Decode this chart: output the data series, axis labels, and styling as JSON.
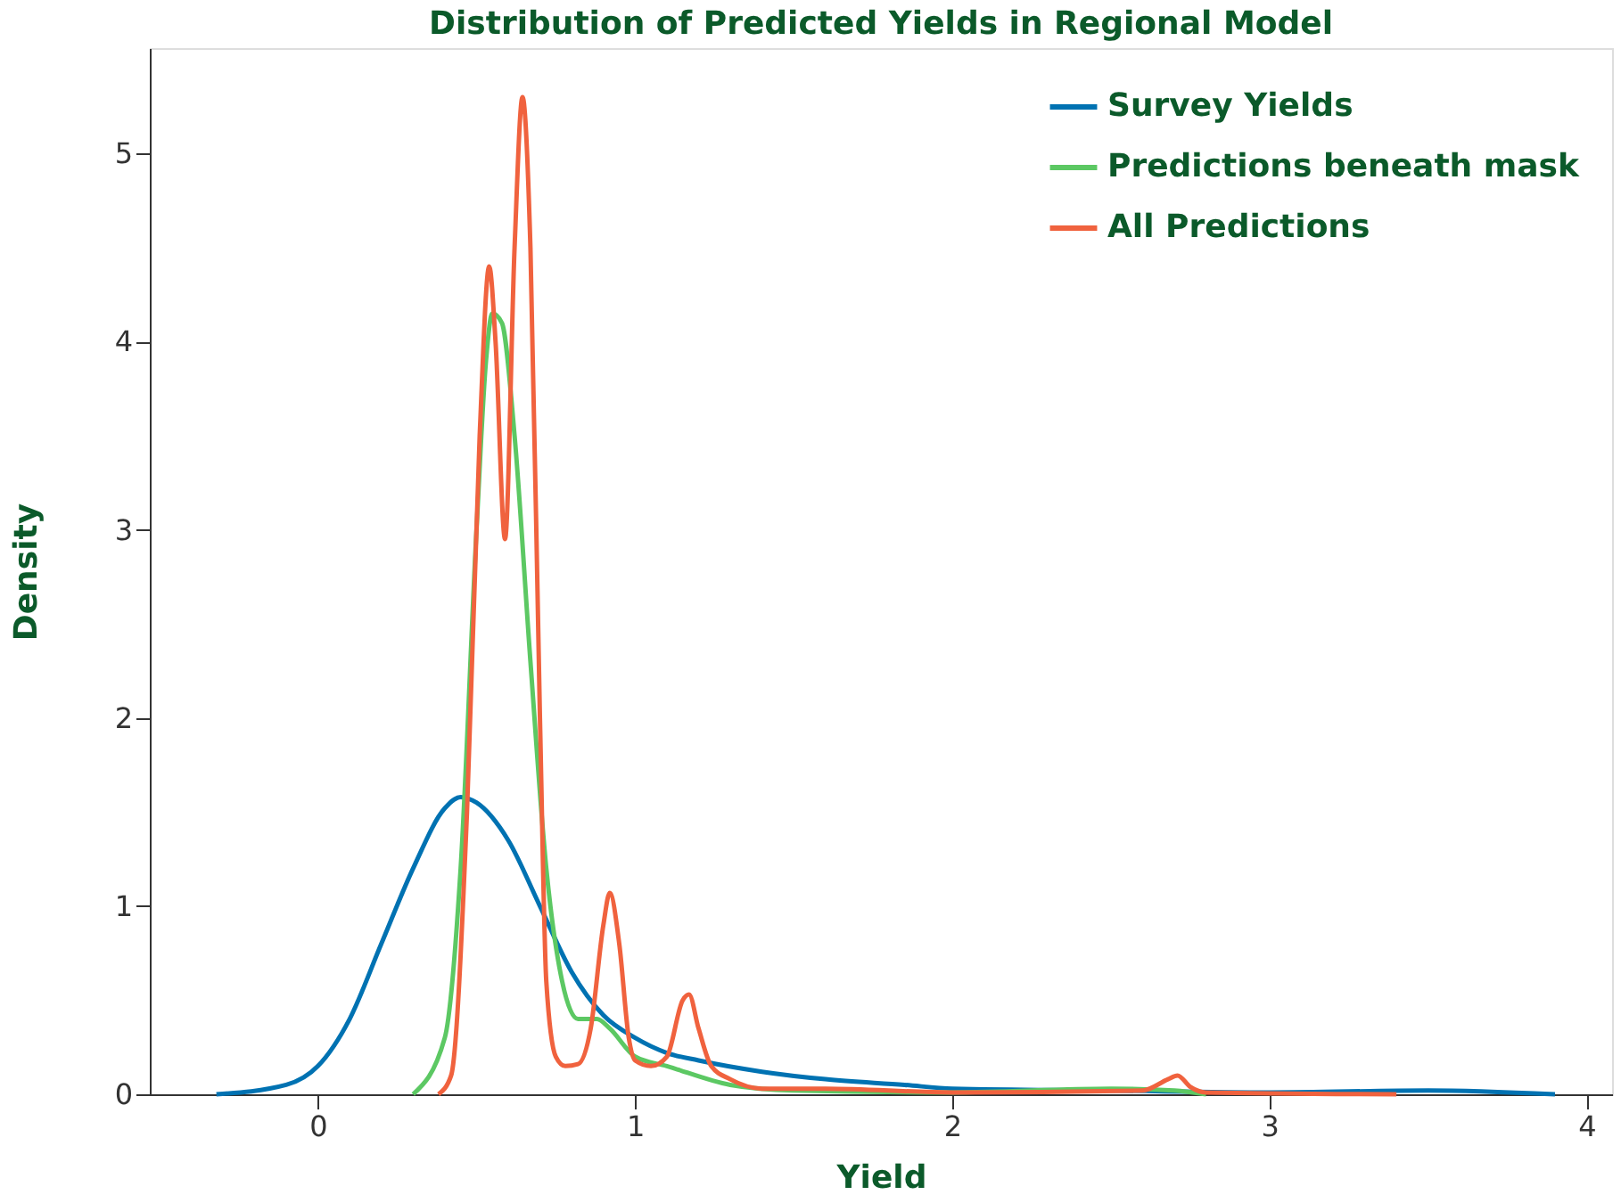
{
  "chart_data": {
    "type": "line",
    "title": "Distribution of Predicted Yields in Regional Model",
    "xlabel": "Yield",
    "ylabel": "Density",
    "xlim": [
      -0.53,
      4.08
    ],
    "ylim": [
      0,
      5.56
    ],
    "xticks": [
      0,
      1,
      2,
      3,
      4
    ],
    "yticks": [
      0,
      1,
      2,
      3,
      4,
      5
    ],
    "grid": false,
    "legend": "top right",
    "line_style": "solid",
    "marker": "none",
    "series": [
      {
        "name": "Survey Yields",
        "color": "#0072b2",
        "x": [
          -0.32,
          -0.1,
          0,
          0.1,
          0.2,
          0.3,
          0.4,
          0.45,
          0.5,
          0.6,
          0.7,
          0.8,
          0.9,
          1.0,
          1.1,
          1.2,
          1.4,
          1.6,
          1.85,
          2.0,
          2.5,
          3.0,
          3.5,
          3.9
        ],
        "values": [
          0,
          0.05,
          0.15,
          0.4,
          0.8,
          1.2,
          1.52,
          1.58,
          1.55,
          1.35,
          1.0,
          0.65,
          0.42,
          0.3,
          0.22,
          0.18,
          0.12,
          0.08,
          0.05,
          0.03,
          0.02,
          0.01,
          0.02,
          0
        ]
      },
      {
        "name": "Predictions beneath mask",
        "color": "#5cc863",
        "x": [
          0.3,
          0.4,
          0.45,
          0.5,
          0.53,
          0.55,
          0.58,
          0.62,
          0.67,
          0.72,
          0.77,
          0.82,
          0.88,
          0.92,
          1.0,
          1.1,
          1.3,
          1.5,
          2.0,
          2.5,
          2.7,
          2.8
        ],
        "values": [
          0,
          0.3,
          1.2,
          3.0,
          3.9,
          4.15,
          4.1,
          3.5,
          2.3,
          1.2,
          0.6,
          0.4,
          0.4,
          0.35,
          0.2,
          0.15,
          0.05,
          0.02,
          0.01,
          0.03,
          0.02,
          0
        ]
      },
      {
        "name": "All Predictions",
        "color": "#f0623e",
        "x": [
          0.38,
          0.42,
          0.47,
          0.51,
          0.54,
          0.56,
          0.59,
          0.62,
          0.645,
          0.67,
          0.7,
          0.72,
          0.75,
          0.78,
          0.82,
          0.86,
          0.9,
          0.92,
          0.95,
          0.98,
          1.0,
          1.05,
          1.1,
          1.15,
          1.17,
          1.2,
          1.24,
          1.3,
          1.4,
          1.6,
          2.0,
          2.6,
          2.68,
          2.71,
          2.75,
          2.8,
          3.4
        ],
        "values": [
          0,
          0.1,
          1.5,
          3.5,
          4.4,
          4.0,
          2.95,
          4.5,
          5.3,
          4.5,
          2.0,
          0.6,
          0.2,
          0.15,
          0.16,
          0.35,
          0.9,
          1.07,
          0.8,
          0.3,
          0.18,
          0.15,
          0.2,
          0.5,
          0.53,
          0.35,
          0.15,
          0.08,
          0.03,
          0.03,
          0.01,
          0.02,
          0.08,
          0.1,
          0.04,
          0.01,
          0
        ]
      }
    ]
  }
}
